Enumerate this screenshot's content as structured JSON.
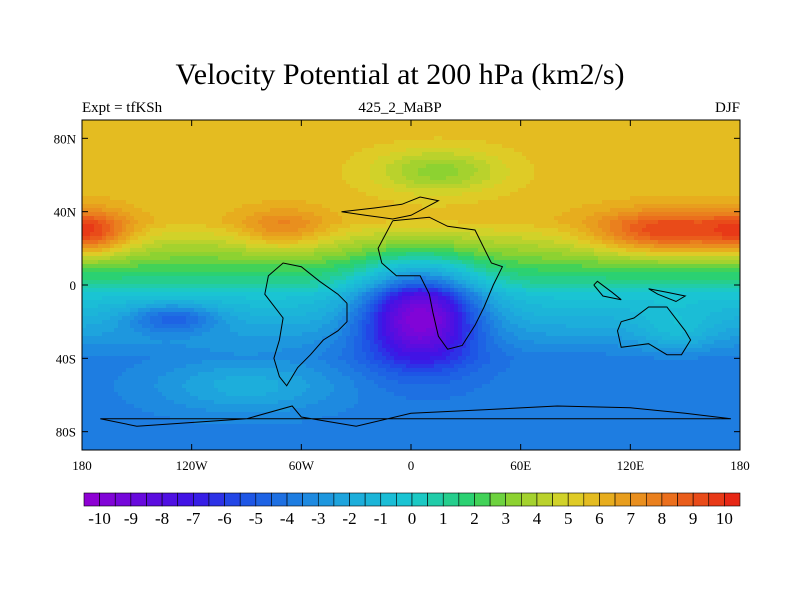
{
  "title": "Velocity Potential at 200 hPa (km2/s)",
  "left_label": "Expt = tfKSh",
  "center_label": "425_2_MaBP",
  "right_label": "DJF",
  "map": {
    "lon_ticks": [
      {
        "lon": -180,
        "label": "180"
      },
      {
        "lon": -120,
        "label": "120W"
      },
      {
        "lon": -60,
        "label": "60W"
      },
      {
        "lon": 0,
        "label": "0"
      },
      {
        "lon": 60,
        "label": "60E"
      },
      {
        "lon": 120,
        "label": "120E"
      },
      {
        "lon": 180,
        "label": "180"
      }
    ],
    "lat_ticks": [
      {
        "lat": 80,
        "label": "80N"
      },
      {
        "lat": 40,
        "label": "40N"
      },
      {
        "lat": 0,
        "label": "0"
      },
      {
        "lat": -40,
        "label": "40S"
      },
      {
        "lat": -80,
        "label": "80S"
      }
    ],
    "lon_range": [
      -180,
      180
    ],
    "lat_range": [
      -90,
      90
    ],
    "field_features": [
      {
        "lon": 5,
        "lat": -15,
        "value": -10,
        "slon": 32,
        "slat": 26
      },
      {
        "lon": -175,
        "lat": 28,
        "value": 8,
        "slon": 22,
        "slat": 12
      },
      {
        "lon": -70,
        "lat": 30,
        "value": 7,
        "slon": 25,
        "slat": 11
      },
      {
        "lon": 140,
        "lat": 28,
        "value": 9,
        "slon": 40,
        "slat": 12
      },
      {
        "lon": 15,
        "lat": 62,
        "value": 3,
        "slon": 35,
        "slat": 12
      },
      {
        "lon": 145,
        "lat": -25,
        "value": -1,
        "slon": 20,
        "slat": 12
      },
      {
        "lon": -130,
        "lat": -18,
        "value": -5,
        "slon": 25,
        "slat": 8
      },
      {
        "lon": -90,
        "lat": -55,
        "value": -2,
        "slon": 50,
        "slat": 15
      }
    ]
  },
  "colorbar": {
    "min": -10.5,
    "max": 10.5,
    "step": 0.5,
    "labels": [
      "-10",
      "-9",
      "-8",
      "-7",
      "-6",
      "-5",
      "-4",
      "-3",
      "-2",
      "-1",
      "0",
      "1",
      "2",
      "3",
      "4",
      "5",
      "6",
      "7",
      "8",
      "9",
      "10"
    ]
  },
  "colors": {
    "stops": [
      {
        "v": -10.5,
        "c": "#9400d3"
      },
      {
        "v": -7,
        "c": "#3c14e6"
      },
      {
        "v": -5.5,
        "c": "#1e50e6"
      },
      {
        "v": -2,
        "c": "#1eaadc"
      },
      {
        "v": 0,
        "c": "#19c8d2"
      },
      {
        "v": 2,
        "c": "#2dd264"
      },
      {
        "v": 3,
        "c": "#82d232"
      },
      {
        "v": 5,
        "c": "#dcd228"
      },
      {
        "v": 6,
        "c": "#e6b41e"
      },
      {
        "v": 8,
        "c": "#eb781e"
      },
      {
        "v": 10.5,
        "c": "#e61e14"
      }
    ]
  }
}
